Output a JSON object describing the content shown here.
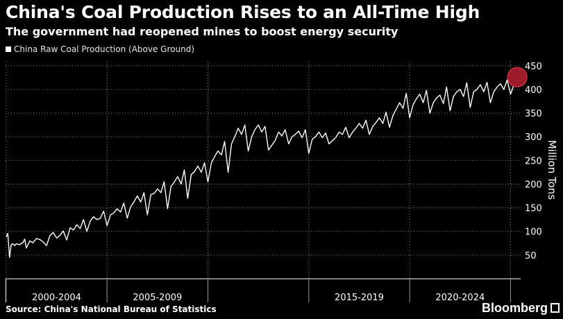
{
  "title": "China's Coal Production Rises to an All-Time High",
  "subtitle": "The government had reopened mines to boost energy security",
  "source": "Source: China's National Bureau of Statistics",
  "brand": "Bloomberg",
  "colors": {
    "background": "#000000",
    "line": "#ffffff",
    "highlight": "#9c1c2b",
    "grid": "#8a8a8a"
  },
  "chart_data": {
    "type": "line",
    "title": "China's Coal Production Rises to an All-Time High",
    "subtitle": "The government had reopened mines to boost energy security",
    "ylabel": "Million Tons",
    "ylim": [
      0,
      460
    ],
    "y_ticks": [
      50,
      100,
      150,
      200,
      250,
      300,
      350,
      400,
      450
    ],
    "x_range": [
      1999.97,
      2025.5
    ],
    "x_group_labels": [
      {
        "label": "2000-2004",
        "from": 2000,
        "to": 2005
      },
      {
        "label": "2005-2009",
        "from": 2005,
        "to": 2010
      },
      {
        "label": "2015-2019",
        "from": 2015,
        "to": 2020
      },
      {
        "label": "2020-2024",
        "from": 2020,
        "to": 2025
      }
    ],
    "grid": true,
    "legend": "top-left",
    "series": [
      {
        "name": "China Raw Coal Production (Above Ground)",
        "x": [
          2000.0,
          2000.08,
          2000.17,
          2000.25,
          2000.33,
          2000.42,
          2000.5,
          2000.58,
          2000.67,
          2000.75,
          2000.83,
          2000.92,
          2001.0,
          2001.17,
          2001.33,
          2001.5,
          2001.67,
          2001.83,
          2002.0,
          2002.17,
          2002.33,
          2002.5,
          2002.67,
          2002.83,
          2003.0,
          2003.17,
          2003.33,
          2003.5,
          2003.67,
          2003.83,
          2004.0,
          2004.17,
          2004.33,
          2004.5,
          2004.67,
          2004.83,
          2005.0,
          2005.17,
          2005.33,
          2005.5,
          2005.67,
          2005.83,
          2006.0,
          2006.17,
          2006.33,
          2006.5,
          2006.67,
          2006.83,
          2007.0,
          2007.17,
          2007.33,
          2007.5,
          2007.67,
          2007.83,
          2008.0,
          2008.17,
          2008.33,
          2008.5,
          2008.67,
          2008.83,
          2009.0,
          2009.17,
          2009.33,
          2009.5,
          2009.67,
          2009.83,
          2010.0,
          2010.17,
          2010.33,
          2010.5,
          2010.67,
          2010.83,
          2011.0,
          2011.17,
          2011.33,
          2011.5,
          2011.67,
          2011.83,
          2012.0,
          2012.17,
          2012.33,
          2012.5,
          2012.67,
          2012.83,
          2013.0,
          2013.17,
          2013.33,
          2013.5,
          2013.67,
          2013.83,
          2014.0,
          2014.17,
          2014.33,
          2014.5,
          2014.67,
          2014.83,
          2015.0,
          2015.17,
          2015.33,
          2015.5,
          2015.67,
          2015.83,
          2016.0,
          2016.17,
          2016.33,
          2016.5,
          2016.67,
          2016.83,
          2017.0,
          2017.17,
          2017.33,
          2017.5,
          2017.67,
          2017.83,
          2018.0,
          2018.17,
          2018.33,
          2018.5,
          2018.67,
          2018.83,
          2019.0,
          2019.17,
          2019.33,
          2019.5,
          2019.67,
          2019.83,
          2020.0,
          2020.17,
          2020.33,
          2020.5,
          2020.67,
          2020.83,
          2021.0,
          2021.17,
          2021.33,
          2021.5,
          2021.67,
          2021.83,
          2022.0,
          2022.17,
          2022.33,
          2022.5,
          2022.67,
          2022.83,
          2023.0,
          2023.17,
          2023.33,
          2023.5,
          2023.67,
          2023.83,
          2024.0,
          2024.17,
          2024.33,
          2024.5,
          2024.67,
          2024.83,
          2025.0,
          2025.17,
          2025.33
        ],
        "values": [
          88,
          96,
          45,
          72,
          74,
          70,
          74,
          73,
          72,
          75,
          76,
          84,
          65,
          80,
          76,
          85,
          83,
          78,
          70,
          91,
          98,
          86,
          92,
          101,
          82,
          108,
          103,
          114,
          106,
          125,
          100,
          122,
          131,
          125,
          128,
          143,
          112,
          135,
          139,
          148,
          141,
          160,
          128,
          152,
          162,
          175,
          162,
          182,
          135,
          178,
          180,
          190,
          182,
          205,
          148,
          195,
          204,
          216,
          200,
          230,
          170,
          220,
          226,
          238,
          225,
          245,
          205,
          245,
          258,
          270,
          262,
          290,
          225,
          285,
          300,
          318,
          305,
          325,
          270,
          300,
          315,
          325,
          310,
          322,
          272,
          282,
          292,
          310,
          302,
          315,
          285,
          300,
          305,
          312,
          298,
          315,
          265,
          295,
          300,
          310,
          298,
          308,
          285,
          292,
          298,
          310,
          305,
          320,
          298,
          310,
          318,
          328,
          318,
          335,
          305,
          322,
          330,
          340,
          328,
          352,
          320,
          345,
          358,
          372,
          360,
          392,
          340,
          368,
          380,
          390,
          372,
          398,
          350,
          372,
          382,
          388,
          370,
          405,
          355,
          385,
          395,
          400,
          385,
          414,
          362,
          395,
          400,
          410,
          395,
          415,
          372,
          395,
          405,
          412,
          400,
          420,
          390,
          410,
          426
        ]
      }
    ],
    "highlight": {
      "x": 2025.33,
      "y": 426
    }
  }
}
